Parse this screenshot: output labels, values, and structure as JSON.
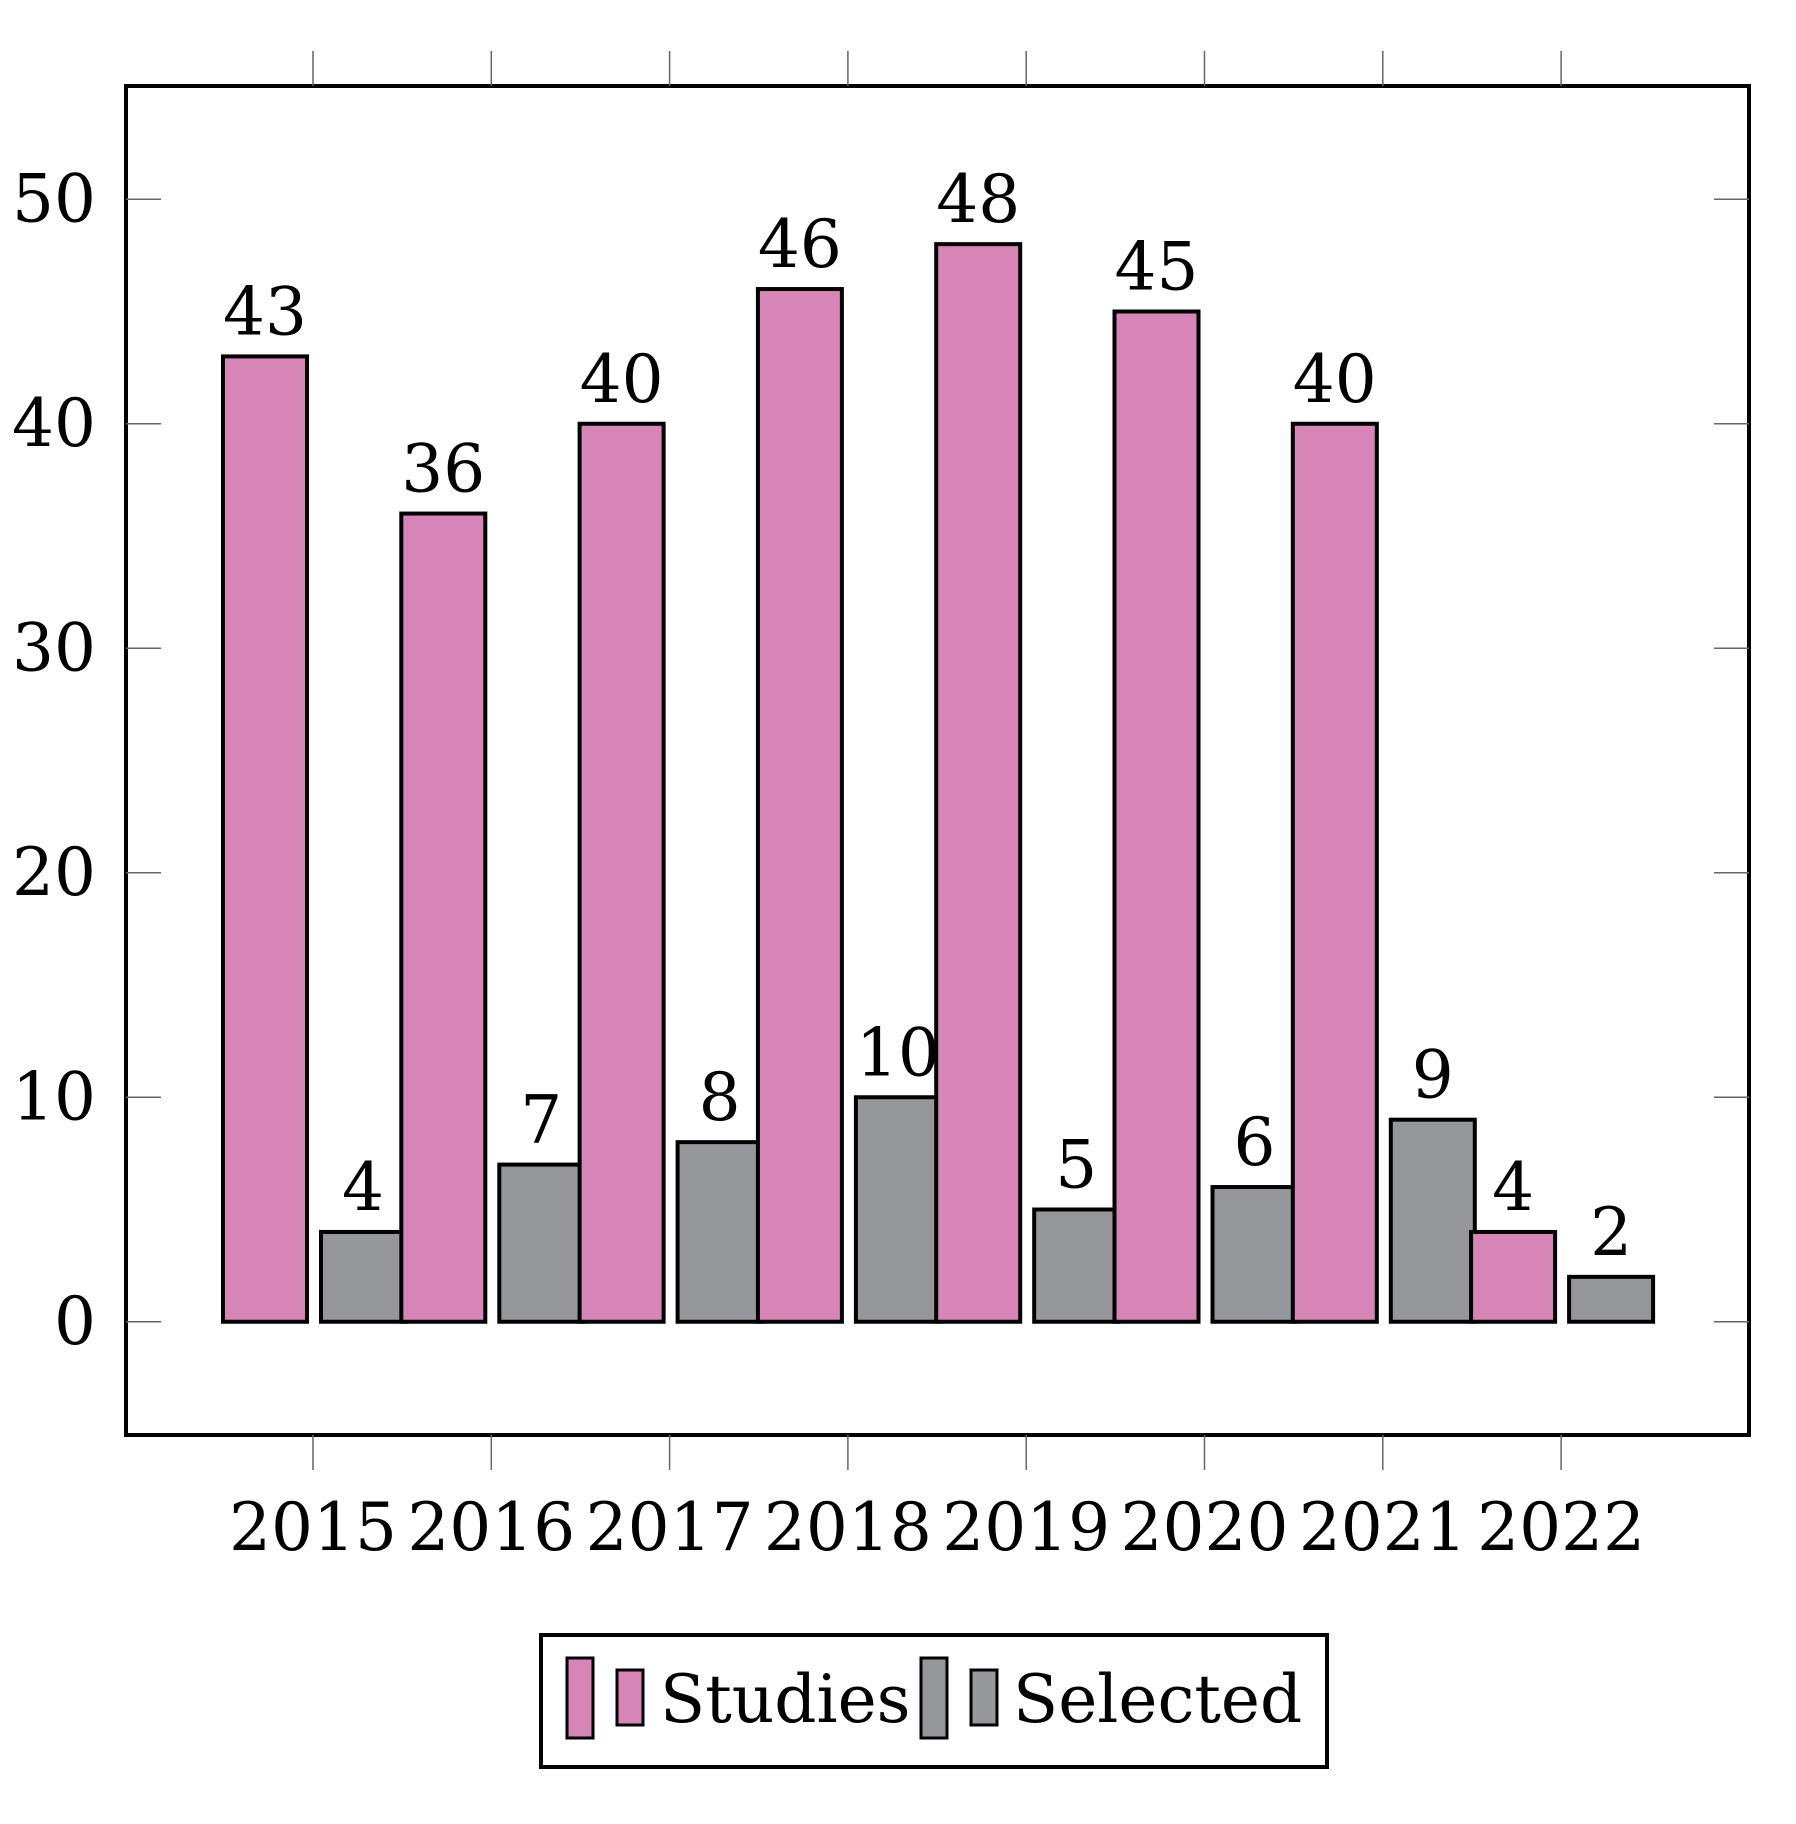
{
  "chart_data": {
    "type": "bar",
    "categories": [
      "2015",
      "2016",
      "2017",
      "2018",
      "2019",
      "2020",
      "2021",
      "2022"
    ],
    "series": [
      {
        "name": "Studies",
        "values": [
          43,
          36,
          40,
          46,
          48,
          45,
          40,
          4
        ],
        "color": "#d784b6"
      },
      {
        "name": "Selected",
        "values": [
          4,
          7,
          8,
          10,
          5,
          6,
          9,
          2
        ],
        "color": "#96979b"
      }
    ],
    "bar_layout": "interleaved",
    "yticks": [
      0,
      10,
      20,
      30,
      40,
      50
    ],
    "ylim": [
      -5,
      55
    ],
    "title": "",
    "xlabel": "",
    "ylabel": "",
    "grid": false,
    "legend_position": "bottom-center",
    "bar_outline_color": "#000000",
    "data_labels": true
  }
}
